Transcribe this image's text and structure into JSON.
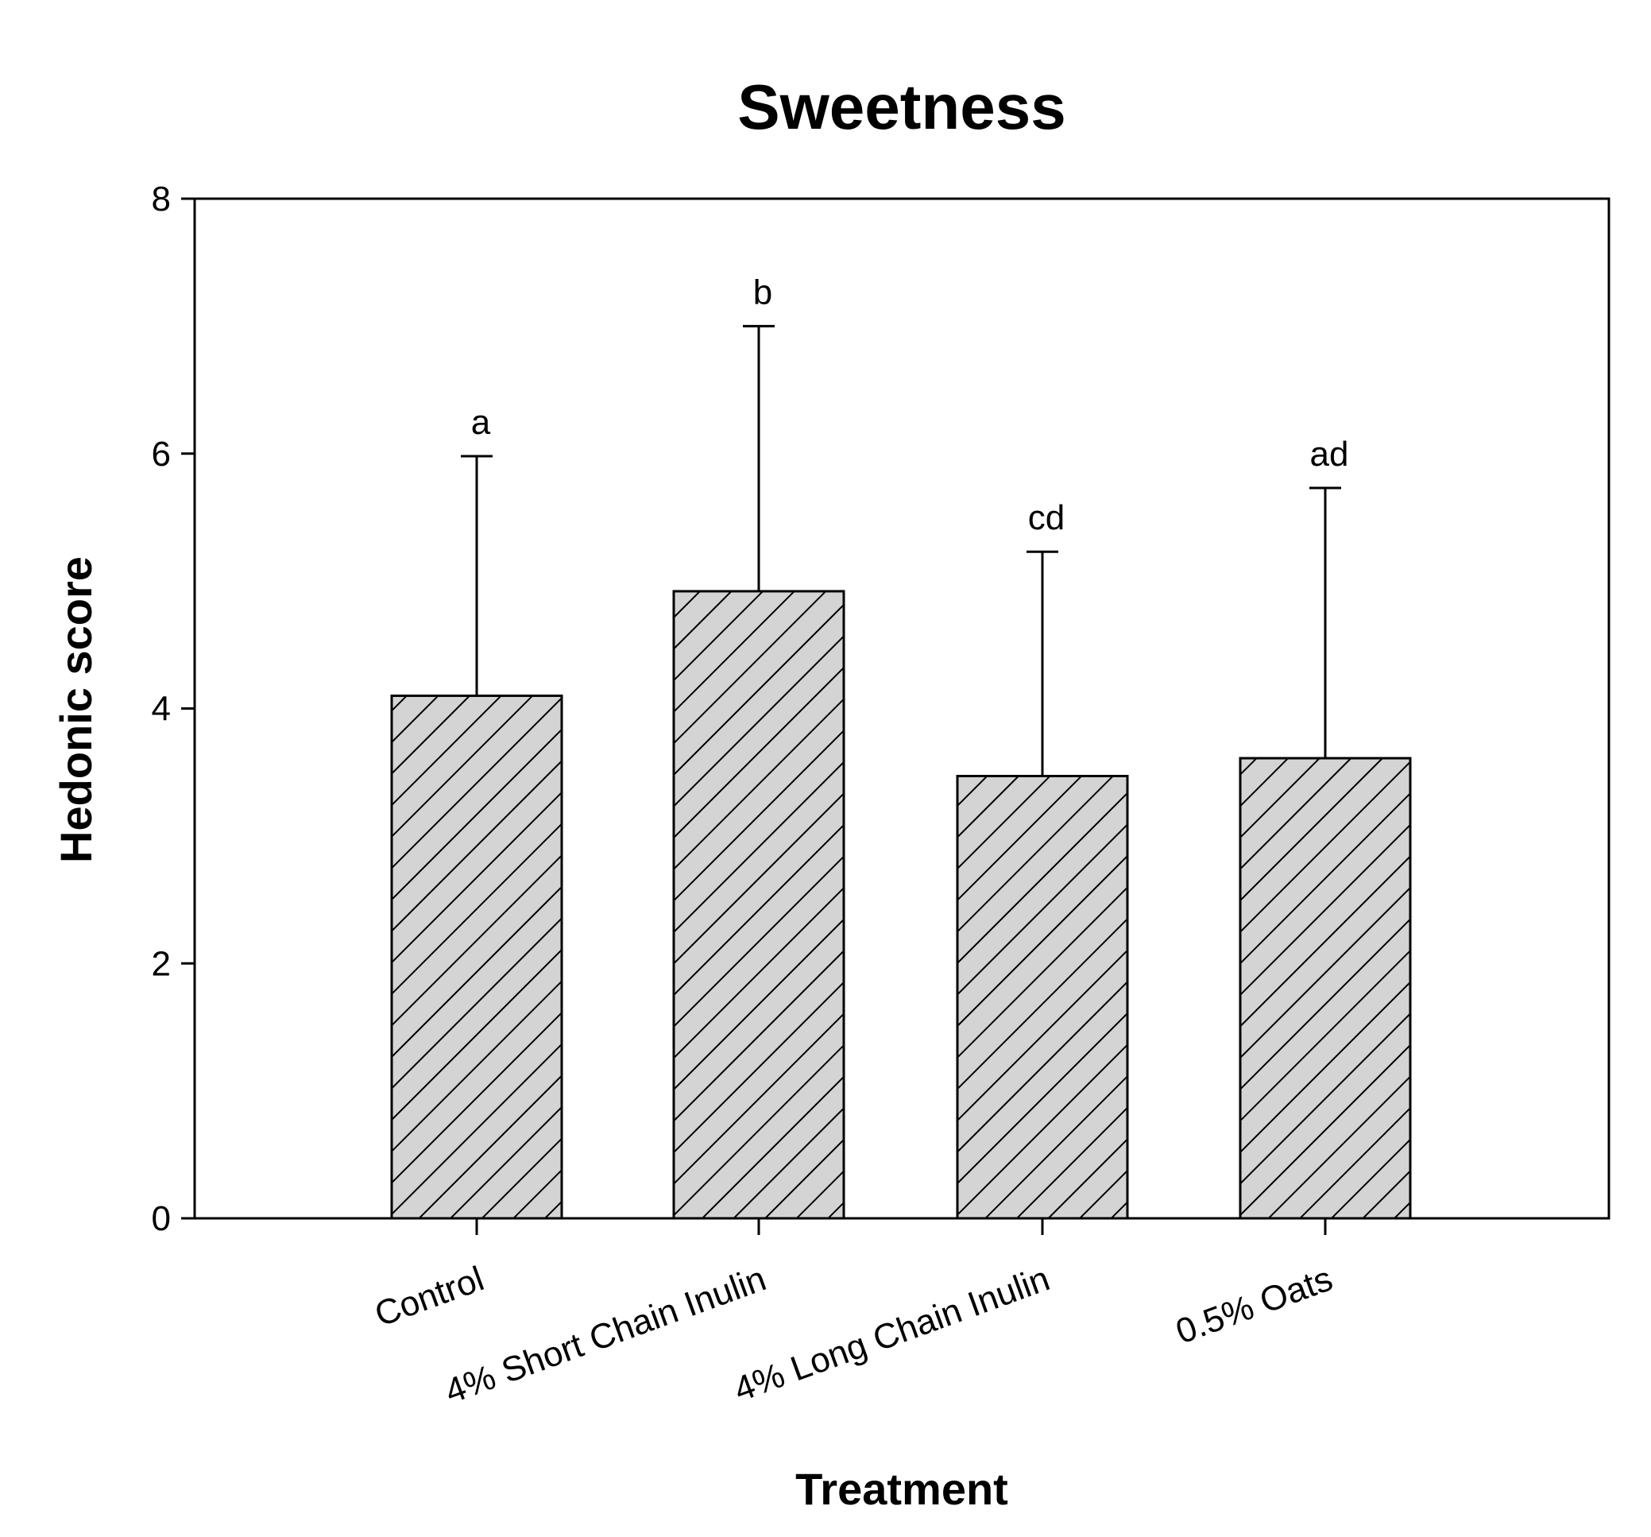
{
  "chart_data": {
    "type": "bar",
    "title": "Sweetness",
    "xlabel": "Treatment",
    "ylabel": "Hedonic score",
    "ylim": [
      0,
      8
    ],
    "yticks": [
      0,
      2,
      4,
      6,
      8
    ],
    "categories": [
      "Control",
      "4% Short Chain Inulin",
      "4% Long Chain Inulin",
      "0.5% Oats"
    ],
    "values": [
      4.1,
      4.92,
      3.47,
      3.61
    ],
    "error_upper": [
      5.98,
      7.0,
      5.23,
      5.73
    ],
    "significance_letters": [
      "a",
      "b",
      "cd",
      "ad"
    ],
    "bar_fill": "#d4d4d4",
    "hatch": "diagonal",
    "grid": false
  }
}
